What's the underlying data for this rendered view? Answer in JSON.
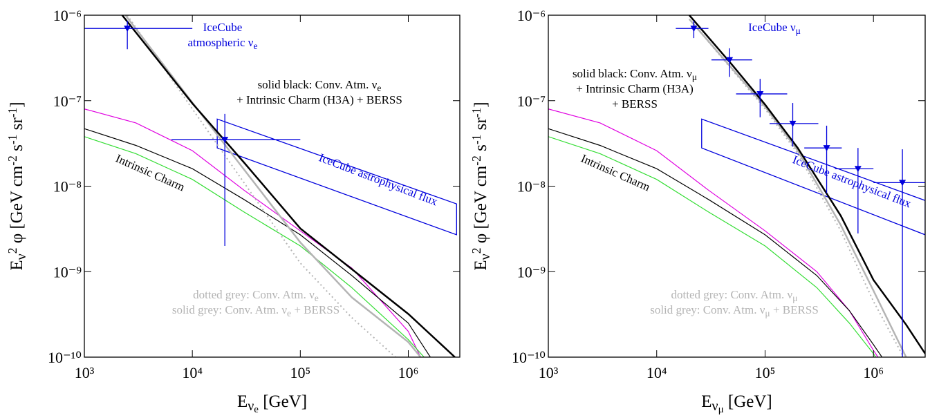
{
  "chart_data": [
    {
      "type": "line",
      "log_x": true,
      "log_y": true,
      "xlabel": [
        {
          "text": "E"
        },
        {
          "sub": "ν"
        },
        {
          "subsub": "e"
        },
        {
          "text": " [GeV]"
        }
      ],
      "ylabel": [
        {
          "text": "E"
        },
        {
          "sub": "ν"
        },
        {
          "sup": "2"
        },
        {
          "text": " φ [GeV cm"
        },
        {
          "sup": "-2"
        },
        {
          "text": " s"
        },
        {
          "sup": "-1"
        },
        {
          "text": " sr"
        },
        {
          "sup": "-1"
        },
        {
          "text": "]"
        }
      ],
      "xlim": [
        1000,
        3000000
      ],
      "ylim": [
        1e-10,
        1e-06
      ],
      "xticks": [
        {
          "value": 1000,
          "label": "10³"
        },
        {
          "value": 10000,
          "label": "10⁴"
        },
        {
          "value": 100000,
          "label": "10⁵"
        },
        {
          "value": 1000000,
          "label": "10⁶"
        }
      ],
      "yticks": [
        {
          "value": 1e-10,
          "label": "10⁻¹⁰"
        },
        {
          "value": 1e-09,
          "label": "10⁻⁹"
        },
        {
          "value": 1e-08,
          "label": "10⁻⁸"
        },
        {
          "value": 1e-07,
          "label": "10⁻⁷"
        },
        {
          "value": 1e-06,
          "label": "10⁻⁶"
        }
      ],
      "series": [
        {
          "color": "#e000e0",
          "style": "solid",
          "width": 1.2,
          "x": [
            1000,
            3000,
            10000,
            30000,
            100000,
            300000,
            1000000,
            1300000
          ],
          "values": [
            8e-08,
            5.5e-08,
            2.6e-08,
            9e-09,
            3e-09,
            1.1e-09,
            2e-10,
            1e-10
          ]
        },
        {
          "color": "#33dd33",
          "style": "solid",
          "width": 1.2,
          "x": [
            1000,
            3000,
            10000,
            30000,
            100000,
            300000,
            1000000,
            1400000
          ],
          "values": [
            3.8e-08,
            2.4e-08,
            1.2e-08,
            5e-09,
            2e-09,
            6.5e-10,
            1.6e-10,
            1e-10
          ]
        },
        {
          "color": "#000000",
          "style": "solid",
          "width": 1.2,
          "x": [
            1000,
            3000,
            10000,
            30000,
            100000,
            300000,
            1000000,
            1600000
          ],
          "values": [
            4.7e-08,
            3e-08,
            1.6e-08,
            7e-09,
            2.7e-09,
            9e-10,
            2.5e-10,
            1e-10
          ]
        },
        {
          "color": "#b4b4b4",
          "style": "dotted",
          "width": 2,
          "x": [
            2500,
            10000,
            100000,
            300000,
            760000
          ],
          "values": [
            1e-06,
            8e-08,
            1.26e-09,
            2.9e-10,
            1e-10
          ]
        },
        {
          "color": "#b4b4b4",
          "style": "solid",
          "width": 2.5,
          "x": [
            2400,
            10000,
            100000,
            300000,
            1000000,
            1300000
          ],
          "values": [
            1e-06,
            9.5e-08,
            2.2e-09,
            5e-10,
            1.5e-10,
            1e-10
          ]
        },
        {
          "color": "#000000",
          "style": "solid",
          "width": 2.5,
          "x": [
            2240,
            10000,
            30000,
            100000,
            300000,
            1000000,
            2700000
          ],
          "values": [
            1e-06,
            9.3e-08,
            1.9e-08,
            3.2e-09,
            1.07e-09,
            3.2e-10,
            1e-10
          ]
        }
      ],
      "band": {
        "color": "#0000dd",
        "x": [
          17000,
          2800000
        ],
        "upper": [
          6.1e-08,
          6.2e-09
        ],
        "lower": [
          2.8e-08,
          2.7e-09
        ]
      },
      "errorbars": {
        "color": "#0000dd",
        "points": [
          {
            "x": 2500,
            "y": 7e-07,
            "xlow": 1000,
            "xhigh": 10000,
            "ylow": 4e-07,
            "yhigh": 8.6e-07
          },
          {
            "x": 20000,
            "y": 3.5e-08,
            "xlow": 6400,
            "xhigh": 100000,
            "ylow": 2e-09,
            "yhigh": 7e-08
          }
        ]
      },
      "annotations": [
        {
          "color": "#0000dd",
          "lines": [
            [
              {
                "text": "IceCube"
              }
            ],
            [
              {
                "text": "atmospheric ν"
              },
              {
                "sub": "e"
              }
            ]
          ]
        },
        {
          "color": "#000000",
          "lines": [
            [
              {
                "text": "solid black: Conv. Atm. ν"
              },
              {
                "sub": "e"
              }
            ],
            [
              {
                "text": "+ Intrinsic Charm (H3A) + BERSS"
              }
            ]
          ]
        },
        {
          "color": "#0000dd",
          "lines": [
            [
              {
                "text": "IceCube astrophysical flux"
              }
            ]
          ]
        },
        {
          "color": "#000000",
          "lines": [
            [
              {
                "text": "Intrinsic Charm"
              }
            ]
          ]
        },
        {
          "color": "#b4b4b4",
          "lines": [
            [
              {
                "text": "dotted grey: Conv. Atm. ν"
              },
              {
                "sub": "e"
              }
            ],
            [
              {
                "text": "solid grey: Conv. Atm. ν"
              },
              {
                "sub": "e"
              },
              {
                "text": " + BERSS"
              }
            ]
          ]
        }
      ]
    },
    {
      "type": "line",
      "log_x": true,
      "log_y": true,
      "xlabel": [
        {
          "text": "E"
        },
        {
          "sub": "ν"
        },
        {
          "subsub": "μ"
        },
        {
          "text": " [GeV]"
        }
      ],
      "ylabel": [
        {
          "text": "E"
        },
        {
          "sub": "ν"
        },
        {
          "sup": "2"
        },
        {
          "text": " φ [GeV cm"
        },
        {
          "sup": "-2"
        },
        {
          "text": " s"
        },
        {
          "sup": "-1"
        },
        {
          "text": " sr"
        },
        {
          "sup": "-1"
        },
        {
          "text": "]"
        }
      ],
      "xlim": [
        1000,
        3000000
      ],
      "ylim": [
        1e-10,
        1e-06
      ],
      "xticks": [
        {
          "value": 1000,
          "label": "10³"
        },
        {
          "value": 10000,
          "label": "10⁴"
        },
        {
          "value": 100000,
          "label": "10⁵"
        },
        {
          "value": 1000000,
          "label": "10⁶"
        }
      ],
      "yticks": [
        {
          "value": 1e-10,
          "label": "10⁻¹⁰"
        },
        {
          "value": 1e-09,
          "label": "10⁻⁹"
        },
        {
          "value": 1e-08,
          "label": "10⁻⁸"
        },
        {
          "value": 1e-07,
          "label": "10⁻⁷"
        },
        {
          "value": 1e-06,
          "label": "10⁻⁶"
        }
      ],
      "series": [
        {
          "color": "#e000e0",
          "style": "solid",
          "width": 1.2,
          "x": [
            1000,
            3000,
            10000,
            30000,
            100000,
            300000,
            600000,
            1000000,
            1100000
          ],
          "values": [
            8e-08,
            5.5e-08,
            2.6e-08,
            9e-09,
            3e-09,
            1e-09,
            3.5e-10,
            1.2e-10,
            1e-10
          ]
        },
        {
          "color": "#33dd33",
          "style": "solid",
          "width": 1.2,
          "x": [
            1000,
            3000,
            10000,
            30000,
            100000,
            300000,
            600000,
            1000000,
            1050000
          ],
          "values": [
            3.8e-08,
            2.4e-08,
            1.2e-08,
            5e-09,
            2e-09,
            6.5e-10,
            2.5e-10,
            1.1e-10,
            1e-10
          ]
        },
        {
          "color": "#000000",
          "style": "solid",
          "width": 1.2,
          "x": [
            1000,
            3000,
            10000,
            30000,
            100000,
            300000,
            600000,
            1000000,
            1200000
          ],
          "values": [
            4.7e-08,
            3e-08,
            1.6e-08,
            7e-09,
            2.7e-09,
            9e-10,
            3.5e-10,
            1.4e-10,
            1e-10
          ]
        },
        {
          "color": "#b4b4b4",
          "style": "dotted",
          "width": 2,
          "x": [
            20000,
            100000,
            200000,
            500000,
            1000000,
            1900000
          ],
          "values": [
            9e-07,
            8e-08,
            2.4e-08,
            3e-09,
            4.5e-10,
            1e-10
          ]
        },
        {
          "color": "#b4b4b4",
          "style": "solid",
          "width": 2.5,
          "x": [
            20000,
            100000,
            200000,
            500000,
            1000000,
            2000000
          ],
          "values": [
            9e-07,
            8.5e-08,
            2.6e-08,
            3.5e-09,
            6e-10,
            1e-10
          ]
        },
        {
          "color": "#000000",
          "style": "solid",
          "width": 2.5,
          "x": [
            20000,
            50000,
            100000,
            200000,
            500000,
            1000000,
            2000000,
            3000000
          ],
          "values": [
            1e-06,
            2.6e-07,
            9e-08,
            2.8e-08,
            4.5e-09,
            8e-10,
            2.4e-10,
            1.1e-10
          ]
        }
      ],
      "band": {
        "color": "#0000dd",
        "x": [
          26000,
          3000000
        ],
        "upper": [
          6.1e-08,
          6.8e-09
        ],
        "lower": [
          2.8e-08,
          2.7e-09
        ]
      },
      "errorbars": {
        "color": "#0000dd",
        "points": [
          {
            "x": 22000,
            "y": 7e-07,
            "xlow": 15000,
            "xhigh": 30000,
            "ylow": 5.4e-07,
            "yhigh": 8.6e-07
          },
          {
            "x": 47000,
            "y": 3e-07,
            "xlow": 32000,
            "xhigh": 76000,
            "ylow": 1.9e-07,
            "yhigh": 4.1e-07
          },
          {
            "x": 90000,
            "y": 1.2e-07,
            "xlow": 54000,
            "xhigh": 160000,
            "ylow": 6.4e-08,
            "yhigh": 1.8e-07
          },
          {
            "x": 180000,
            "y": 5.4e-08,
            "xlow": 110000,
            "xhigh": 310000,
            "ylow": 2.9e-08,
            "yhigh": 9.4e-08
          },
          {
            "x": 370000,
            "y": 2.8e-08,
            "xlow": 230000,
            "xhigh": 510000,
            "ylow": 8.3e-09,
            "yhigh": 5.1e-08
          },
          {
            "x": 720000,
            "y": 1.6e-08,
            "xlow": 440000,
            "xhigh": 1000000,
            "ylow": 2.8e-09,
            "yhigh": 2.8e-08
          },
          {
            "x": 1850000,
            "y": 1.1e-08,
            "xlow": 1000000,
            "xhigh": 3000000,
            "ylow": 1e-10,
            "yhigh": 2.7e-08
          }
        ]
      },
      "annotations": [
        {
          "color": "#0000dd",
          "lines": [
            [
              {
                "text": "IceCube ν"
              },
              {
                "sub": "μ"
              }
            ]
          ]
        },
        {
          "color": "#000000",
          "lines": [
            [
              {
                "text": "solid black: Conv. Atm. ν"
              },
              {
                "sub": "μ"
              }
            ],
            [
              {
                "text": "+ Intrinsic Charm (H3A)"
              }
            ],
            [
              {
                "text": "+ BERSS"
              }
            ]
          ]
        },
        {
          "color": "#0000dd",
          "lines": [
            [
              {
                "text": "IceCube astrophysical flux"
              }
            ]
          ]
        },
        {
          "color": "#000000",
          "lines": [
            [
              {
                "text": "Intrinsic Charm"
              }
            ]
          ]
        },
        {
          "color": "#b4b4b4",
          "lines": [
            [
              {
                "text": "dotted grey: Conv. Atm. ν"
              },
              {
                "sub": "μ"
              }
            ],
            [
              {
                "text": "solid grey: Conv. Atm. ν"
              },
              {
                "sub": "μ"
              },
              {
                "text": " + BERSS"
              }
            ]
          ]
        }
      ]
    }
  ]
}
